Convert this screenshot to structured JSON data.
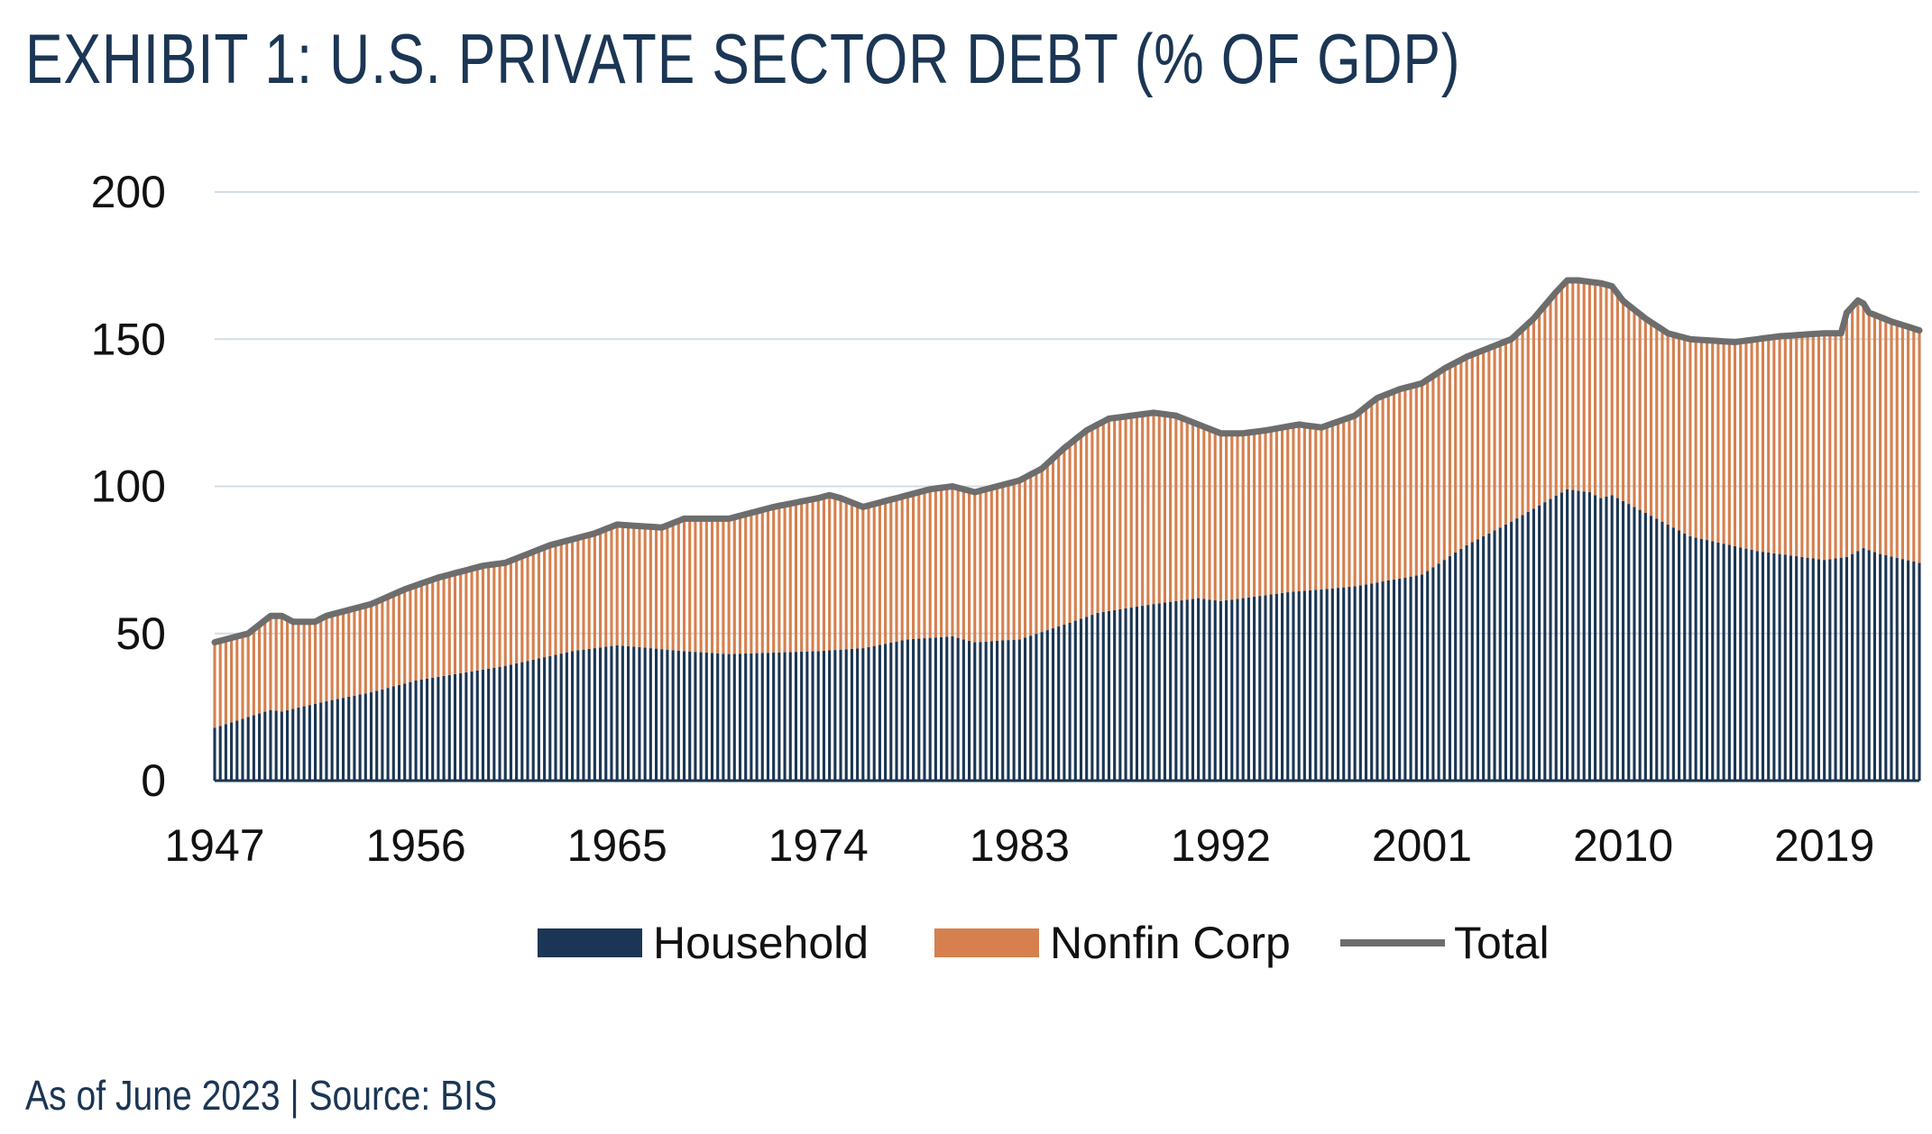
{
  "title": "EXHIBIT 1: U.S. PRIVATE SECTOR DEBT (% OF GDP)",
  "footer": "As of June 2023 | Source: BIS",
  "colors": {
    "household": "#1b3654",
    "nonfin": "#d5804e",
    "total": "#6d6d6d",
    "grid": "#d3dde6",
    "title": "#1b3654"
  },
  "chart_data": {
    "type": "area",
    "stacked": true,
    "x_start": 1947,
    "x_end": 2023.25,
    "frequency": "quarterly",
    "ylim": [
      0,
      200
    ],
    "yticks": [
      0,
      50,
      100,
      150,
      200
    ],
    "xticks": [
      "1947",
      "1956",
      "1965",
      "1974",
      "1983",
      "1992",
      "2001",
      "2010",
      "2019"
    ],
    "grid": true,
    "legend_position": "bottom",
    "series": [
      {
        "name": "Household",
        "keypoints": [
          [
            1947,
            18
          ],
          [
            1949.5,
            24
          ],
          [
            1950,
            23.5
          ],
          [
            1952,
            27
          ],
          [
            1954,
            30
          ],
          [
            1956,
            34
          ],
          [
            1960,
            39
          ],
          [
            1963,
            44
          ],
          [
            1965,
            46
          ],
          [
            1968,
            44
          ],
          [
            1970,
            43
          ],
          [
            1974,
            44
          ],
          [
            1976,
            45
          ],
          [
            1978,
            48
          ],
          [
            1980,
            49
          ],
          [
            1981,
            47
          ],
          [
            1983,
            48
          ],
          [
            1985,
            53
          ],
          [
            1986.5,
            57
          ],
          [
            1989,
            60
          ],
          [
            1991,
            62
          ],
          [
            1992,
            61
          ],
          [
            1995,
            64
          ],
          [
            1998,
            66
          ],
          [
            2001,
            70
          ],
          [
            2003,
            80
          ],
          [
            2005,
            88
          ],
          [
            2007.5,
            99
          ],
          [
            2008.5,
            98
          ],
          [
            2009,
            96
          ],
          [
            2009.5,
            97
          ],
          [
            2011,
            91
          ],
          [
            2013,
            83
          ],
          [
            2016,
            78
          ],
          [
            2019,
            75
          ],
          [
            2020,
            76
          ],
          [
            2020.75,
            79
          ],
          [
            2021.5,
            77
          ],
          [
            2023.25,
            74
          ]
        ]
      },
      {
        "name": "Nonfin Corp",
        "derived": "Total minus Household"
      },
      {
        "name": "Total",
        "keypoints": [
          [
            1947,
            47
          ],
          [
            1948.5,
            50
          ],
          [
            1949.5,
            56
          ],
          [
            1950,
            56
          ],
          [
            1950.5,
            54
          ],
          [
            1951.5,
            54
          ],
          [
            1952,
            56
          ],
          [
            1954,
            60
          ],
          [
            1955.5,
            65
          ],
          [
            1957,
            69
          ],
          [
            1959,
            73
          ],
          [
            1960,
            74
          ],
          [
            1962,
            80
          ],
          [
            1964,
            84
          ],
          [
            1965,
            87
          ],
          [
            1967,
            86
          ],
          [
            1968,
            89
          ],
          [
            1970,
            89
          ],
          [
            1972,
            93
          ],
          [
            1974,
            96
          ],
          [
            1974.5,
            97
          ],
          [
            1975,
            96
          ],
          [
            1976,
            93
          ],
          [
            1977,
            95
          ],
          [
            1979,
            99
          ],
          [
            1980,
            100
          ],
          [
            1981,
            98
          ],
          [
            1982,
            100
          ],
          [
            1983,
            102
          ],
          [
            1984,
            106
          ],
          [
            1985,
            113
          ],
          [
            1986,
            119
          ],
          [
            1987,
            123
          ],
          [
            1989,
            125
          ],
          [
            1990,
            124
          ],
          [
            1991,
            121
          ],
          [
            1992,
            118
          ],
          [
            1993,
            118
          ],
          [
            1994,
            119
          ],
          [
            1995.5,
            121
          ],
          [
            1996.5,
            120
          ],
          [
            1998,
            124
          ],
          [
            1999,
            130
          ],
          [
            2000,
            133
          ],
          [
            2001,
            135
          ],
          [
            2002,
            140
          ],
          [
            2003,
            144
          ],
          [
            2004,
            147
          ],
          [
            2005,
            150
          ],
          [
            2006,
            157
          ],
          [
            2007,
            166
          ],
          [
            2007.5,
            170
          ],
          [
            2008,
            170
          ],
          [
            2009,
            169
          ],
          [
            2009.5,
            168
          ],
          [
            2010,
            163
          ],
          [
            2011,
            157
          ],
          [
            2012,
            152
          ],
          [
            2013,
            150
          ],
          [
            2015,
            149
          ],
          [
            2016,
            150
          ],
          [
            2017,
            151
          ],
          [
            2019,
            152
          ],
          [
            2019.75,
            152
          ],
          [
            2020,
            159
          ],
          [
            2020.6,
            164
          ],
          [
            2021,
            159
          ],
          [
            2022,
            156
          ],
          [
            2023.25,
            153
          ]
        ]
      }
    ]
  }
}
